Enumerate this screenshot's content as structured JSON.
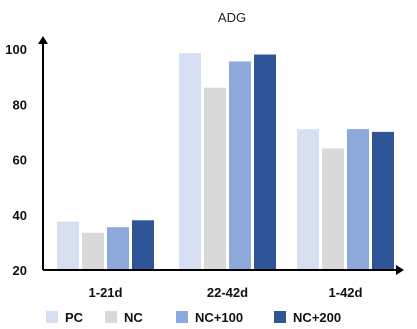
{
  "chart_data": {
    "type": "bar",
    "title": "ADG",
    "categories": [
      "1-21d",
      "22-42d",
      "1-42d"
    ],
    "series": [
      {
        "name": "PC",
        "values": [
          37.5,
          98.5,
          71
        ],
        "color": "#d6e0f2"
      },
      {
        "name": "NC",
        "values": [
          33.5,
          86,
          64
        ],
        "color": "#d9d9d9"
      },
      {
        "name": "NC+100",
        "values": [
          35.5,
          95.5,
          71
        ],
        "color": "#8ea9db"
      },
      {
        "name": "NC+200",
        "values": [
          38,
          98,
          70
        ],
        "color": "#2f5597"
      }
    ],
    "ylim": [
      20,
      100
    ],
    "yticks": [
      20,
      40,
      60,
      80,
      100
    ],
    "legend_position": "bottom",
    "grid": false
  }
}
